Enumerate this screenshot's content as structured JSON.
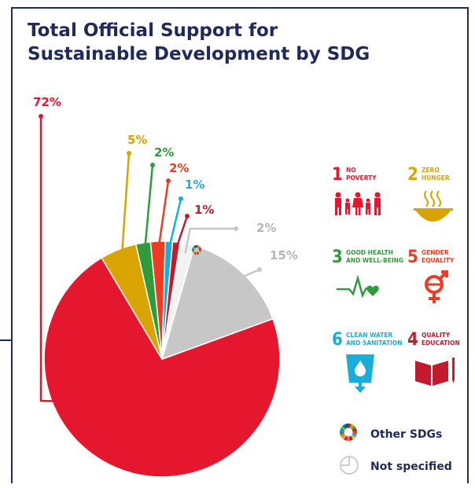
{
  "title_lines": [
    "Total Official Support for",
    "Sustainable Development by SDG"
  ],
  "colors": {
    "frame": "#1f2a5a"
  },
  "chart_data": {
    "type": "pie",
    "title": "Total Official Support for Sustainable Development by SDG",
    "slices": [
      {
        "label": "No poverty",
        "value": 72,
        "value_label": "72%",
        "color": "#e5172f"
      },
      {
        "label": "Zero hunger",
        "value": 5,
        "value_label": "5%",
        "color": "#d9a300"
      },
      {
        "label": "Good health and well-being",
        "value": 2,
        "value_label": "2%",
        "color": "#2f9b3a"
      },
      {
        "label": "Gender equality",
        "value": 2,
        "value_label": "2%",
        "color": "#ef3b24"
      },
      {
        "label": "Clean water and sanitation",
        "value": 1,
        "value_label": "1%",
        "color": "#19aed9"
      },
      {
        "label": "Quality education",
        "value": 1,
        "value_label": "1%",
        "color": "#c5192d"
      },
      {
        "label": "Other SDGs",
        "value": 2,
        "value_label": "2%",
        "color": "#f3f3f3"
      },
      {
        "label": "Not specified",
        "value": 15,
        "value_label": "15%",
        "color": "#c7c7c7"
      }
    ]
  },
  "sdg_tiles": [
    {
      "number": "1",
      "line1": "NO",
      "line2": "POVERTY",
      "color": "#e5172f",
      "icon": "family-icon"
    },
    {
      "number": "2",
      "line1": "ZERO",
      "line2": "HUNGER",
      "color": "#d9a300",
      "icon": "bowl-icon"
    },
    {
      "number": "3",
      "line1": "GOOD HEALTH",
      "line2": "AND WELL-BEING",
      "color": "#2f9b3a",
      "icon": "heartbeat-icon"
    },
    {
      "number": "5",
      "line1": "GENDER",
      "line2": "EQUALITY",
      "color": "#ef3b24",
      "icon": "gender-icon"
    },
    {
      "number": "6",
      "line1": "CLEAN WATER",
      "line2": "AND SANITATION",
      "color": "#19aed9",
      "icon": "water-glass-icon"
    },
    {
      "number": "4",
      "line1": "QUALITY",
      "line2": "EDUCATION",
      "color": "#c5192d",
      "icon": "book-icon"
    }
  ],
  "legend": [
    {
      "label": "Other SDGs",
      "icon": "sdg-wheel-icon"
    },
    {
      "label": "Not specified",
      "icon": "empty-pie-icon"
    }
  ]
}
